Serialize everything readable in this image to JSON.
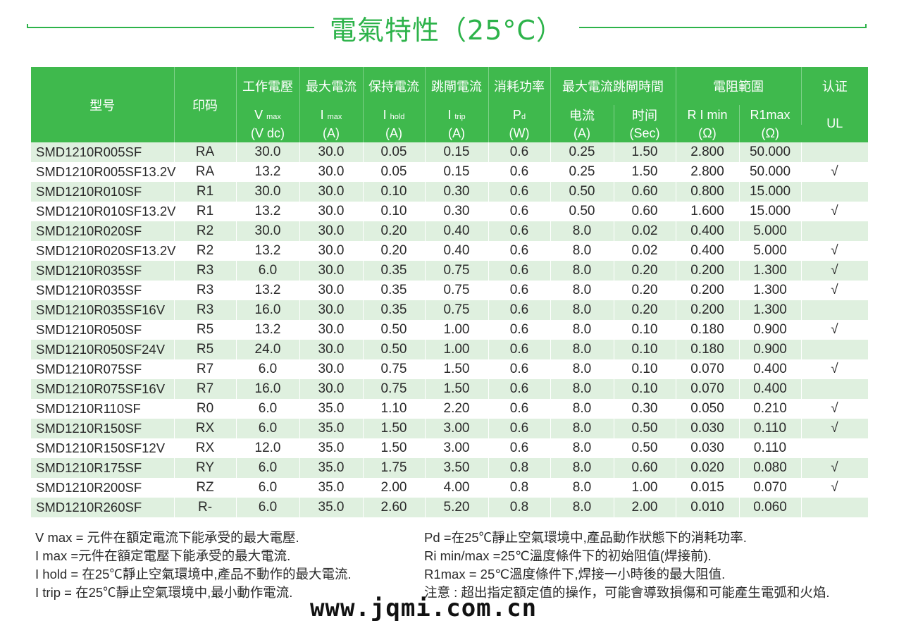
{
  "title": "電氣特性（25°C）",
  "header": {
    "model": "型号",
    "marking": "印码",
    "groups": {
      "operating_voltage": "工作電壓",
      "max_current": "最大電流",
      "hold_current": "保持電流",
      "trip_current": "跳閘電流",
      "power": "消耗功率",
      "max_time_to_trip": "最大電流跳閘時間",
      "resistance": "電阻範圍",
      "cert": "认证"
    },
    "symbols": {
      "vmax": "V",
      "vmax_sub": "max",
      "imax": "I",
      "imax_sub": "max",
      "ihold": "I",
      "ihold_sub": "hold",
      "itrip": "I",
      "itrip_sub": "trip",
      "pd": "P",
      "pd_sub": "d",
      "ttt_current": "电流",
      "ttt_time": "时间",
      "rimin": "R I min",
      "r1max": "R1max",
      "ul": "UL"
    },
    "units": {
      "vmax": "(V dc)",
      "imax": "(A)",
      "ihold": "(A)",
      "itrip": "(A)",
      "pd": "(W)",
      "ttt_current": "(A)",
      "ttt_time": "(Sec)",
      "rimin": "(Ω)",
      "r1max": "(Ω)"
    }
  },
  "rows": [
    [
      "SMD1210R005SF",
      "RA",
      "30.0",
      "30.0",
      "0.05",
      "0.15",
      "0.6",
      "0.25",
      "1.50",
      "2.800",
      "50.000",
      ""
    ],
    [
      "SMD1210R005SF13.2V",
      "RA",
      "13.2",
      "30.0",
      "0.05",
      "0.15",
      "0.6",
      "0.25",
      "1.50",
      "2.800",
      "50.000",
      "√"
    ],
    [
      "SMD1210R010SF",
      "R1",
      "30.0",
      "30.0",
      "0.10",
      "0.30",
      "0.6",
      "0.50",
      "0.60",
      "0.800",
      "15.000",
      ""
    ],
    [
      "SMD1210R010SF13.2V",
      "R1",
      "13.2",
      "30.0",
      "0.10",
      "0.30",
      "0.6",
      "0.50",
      "0.60",
      "1.600",
      "15.000",
      "√"
    ],
    [
      "SMD1210R020SF",
      "R2",
      "30.0",
      "30.0",
      "0.20",
      "0.40",
      "0.6",
      "8.0",
      "0.02",
      "0.400",
      "5.000",
      ""
    ],
    [
      "SMD1210R020SF13.2V",
      "R2",
      "13.2",
      "30.0",
      "0.20",
      "0.40",
      "0.6",
      "8.0",
      "0.02",
      "0.400",
      "5.000",
      "√"
    ],
    [
      "SMD1210R035SF",
      "R3",
      "6.0",
      "30.0",
      "0.35",
      "0.75",
      "0.6",
      "8.0",
      "0.20",
      "0.200",
      "1.300",
      "√"
    ],
    [
      "SMD1210R035SF",
      "R3",
      "13.2",
      "30.0",
      "0.35",
      "0.75",
      "0.6",
      "8.0",
      "0.20",
      "0.200",
      "1.300",
      "√"
    ],
    [
      "SMD1210R035SF16V",
      "R3",
      "16.0",
      "30.0",
      "0.35",
      "0.75",
      "0.6",
      "8.0",
      "0.20",
      "0.200",
      "1.300",
      ""
    ],
    [
      "SMD1210R050SF",
      "R5",
      "13.2",
      "30.0",
      "0.50",
      "1.00",
      "0.6",
      "8.0",
      "0.10",
      "0.180",
      "0.900",
      "√"
    ],
    [
      "SMD1210R050SF24V",
      "R5",
      "24.0",
      "30.0",
      "0.50",
      "1.00",
      "0.6",
      "8.0",
      "0.10",
      "0.180",
      "0.900",
      ""
    ],
    [
      "SMD1210R075SF",
      "R7",
      "6.0",
      "30.0",
      "0.75",
      "1.50",
      "0.6",
      "8.0",
      "0.10",
      "0.070",
      "0.400",
      "√"
    ],
    [
      "SMD1210R075SF16V",
      "R7",
      "16.0",
      "30.0",
      "0.75",
      "1.50",
      "0.6",
      "8.0",
      "0.10",
      "0.070",
      "0.400",
      ""
    ],
    [
      "SMD1210R110SF",
      "R0",
      "6.0",
      "35.0",
      "1.10",
      "2.20",
      "0.6",
      "8.0",
      "0.30",
      "0.050",
      "0.210",
      "√"
    ],
    [
      "SMD1210R150SF",
      "RX",
      "6.0",
      "35.0",
      "1.50",
      "3.00",
      "0.6",
      "8.0",
      "0.50",
      "0.030",
      "0.110",
      "√"
    ],
    [
      "SMD1210R150SF12V",
      "RX",
      "12.0",
      "35.0",
      "1.50",
      "3.00",
      "0.6",
      "8.0",
      "0.50",
      "0.030",
      "0.110",
      ""
    ],
    [
      "SMD1210R175SF",
      "RY",
      "6.0",
      "35.0",
      "1.75",
      "3.50",
      "0.8",
      "8.0",
      "0.60",
      "0.020",
      "0.080",
      "√"
    ],
    [
      "SMD1210R200SF",
      "RZ",
      "6.0",
      "35.0",
      "2.00",
      "4.00",
      "0.8",
      "8.0",
      "1.00",
      "0.015",
      "0.070",
      "√"
    ],
    [
      "SMD1210R260SF",
      "R-",
      "6.0",
      "35.0",
      "2.60",
      "5.20",
      "0.8",
      "8.0",
      "2.00",
      "0.010",
      "0.060",
      ""
    ]
  ],
  "notes_left": [
    "V max = 元件在額定電流下能承受的最大電壓.",
    "I max =元件在額定電壓下能承受的最大電流.",
    "I hold = 在25℃靜止空氣環境中,產品不動作的最大電流.",
    "I trip = 在25℃靜止空氣環境中,最小動作電流."
  ],
  "notes_right": [
    "Pd =在25℃靜止空氣環境中,產品動作狀態下的消耗功率.",
    "Ri min/max  =25℃溫度條件下的初始阻值(焊接前).",
    "R1max  = 25℃溫度條件下,焊接一小時後的最大阻值.",
    "注意 : 超出指定額定值的操作，可能會導致損傷和可能產生電弧和火焰."
  ],
  "watermark": "www.jqmi.com.cn"
}
